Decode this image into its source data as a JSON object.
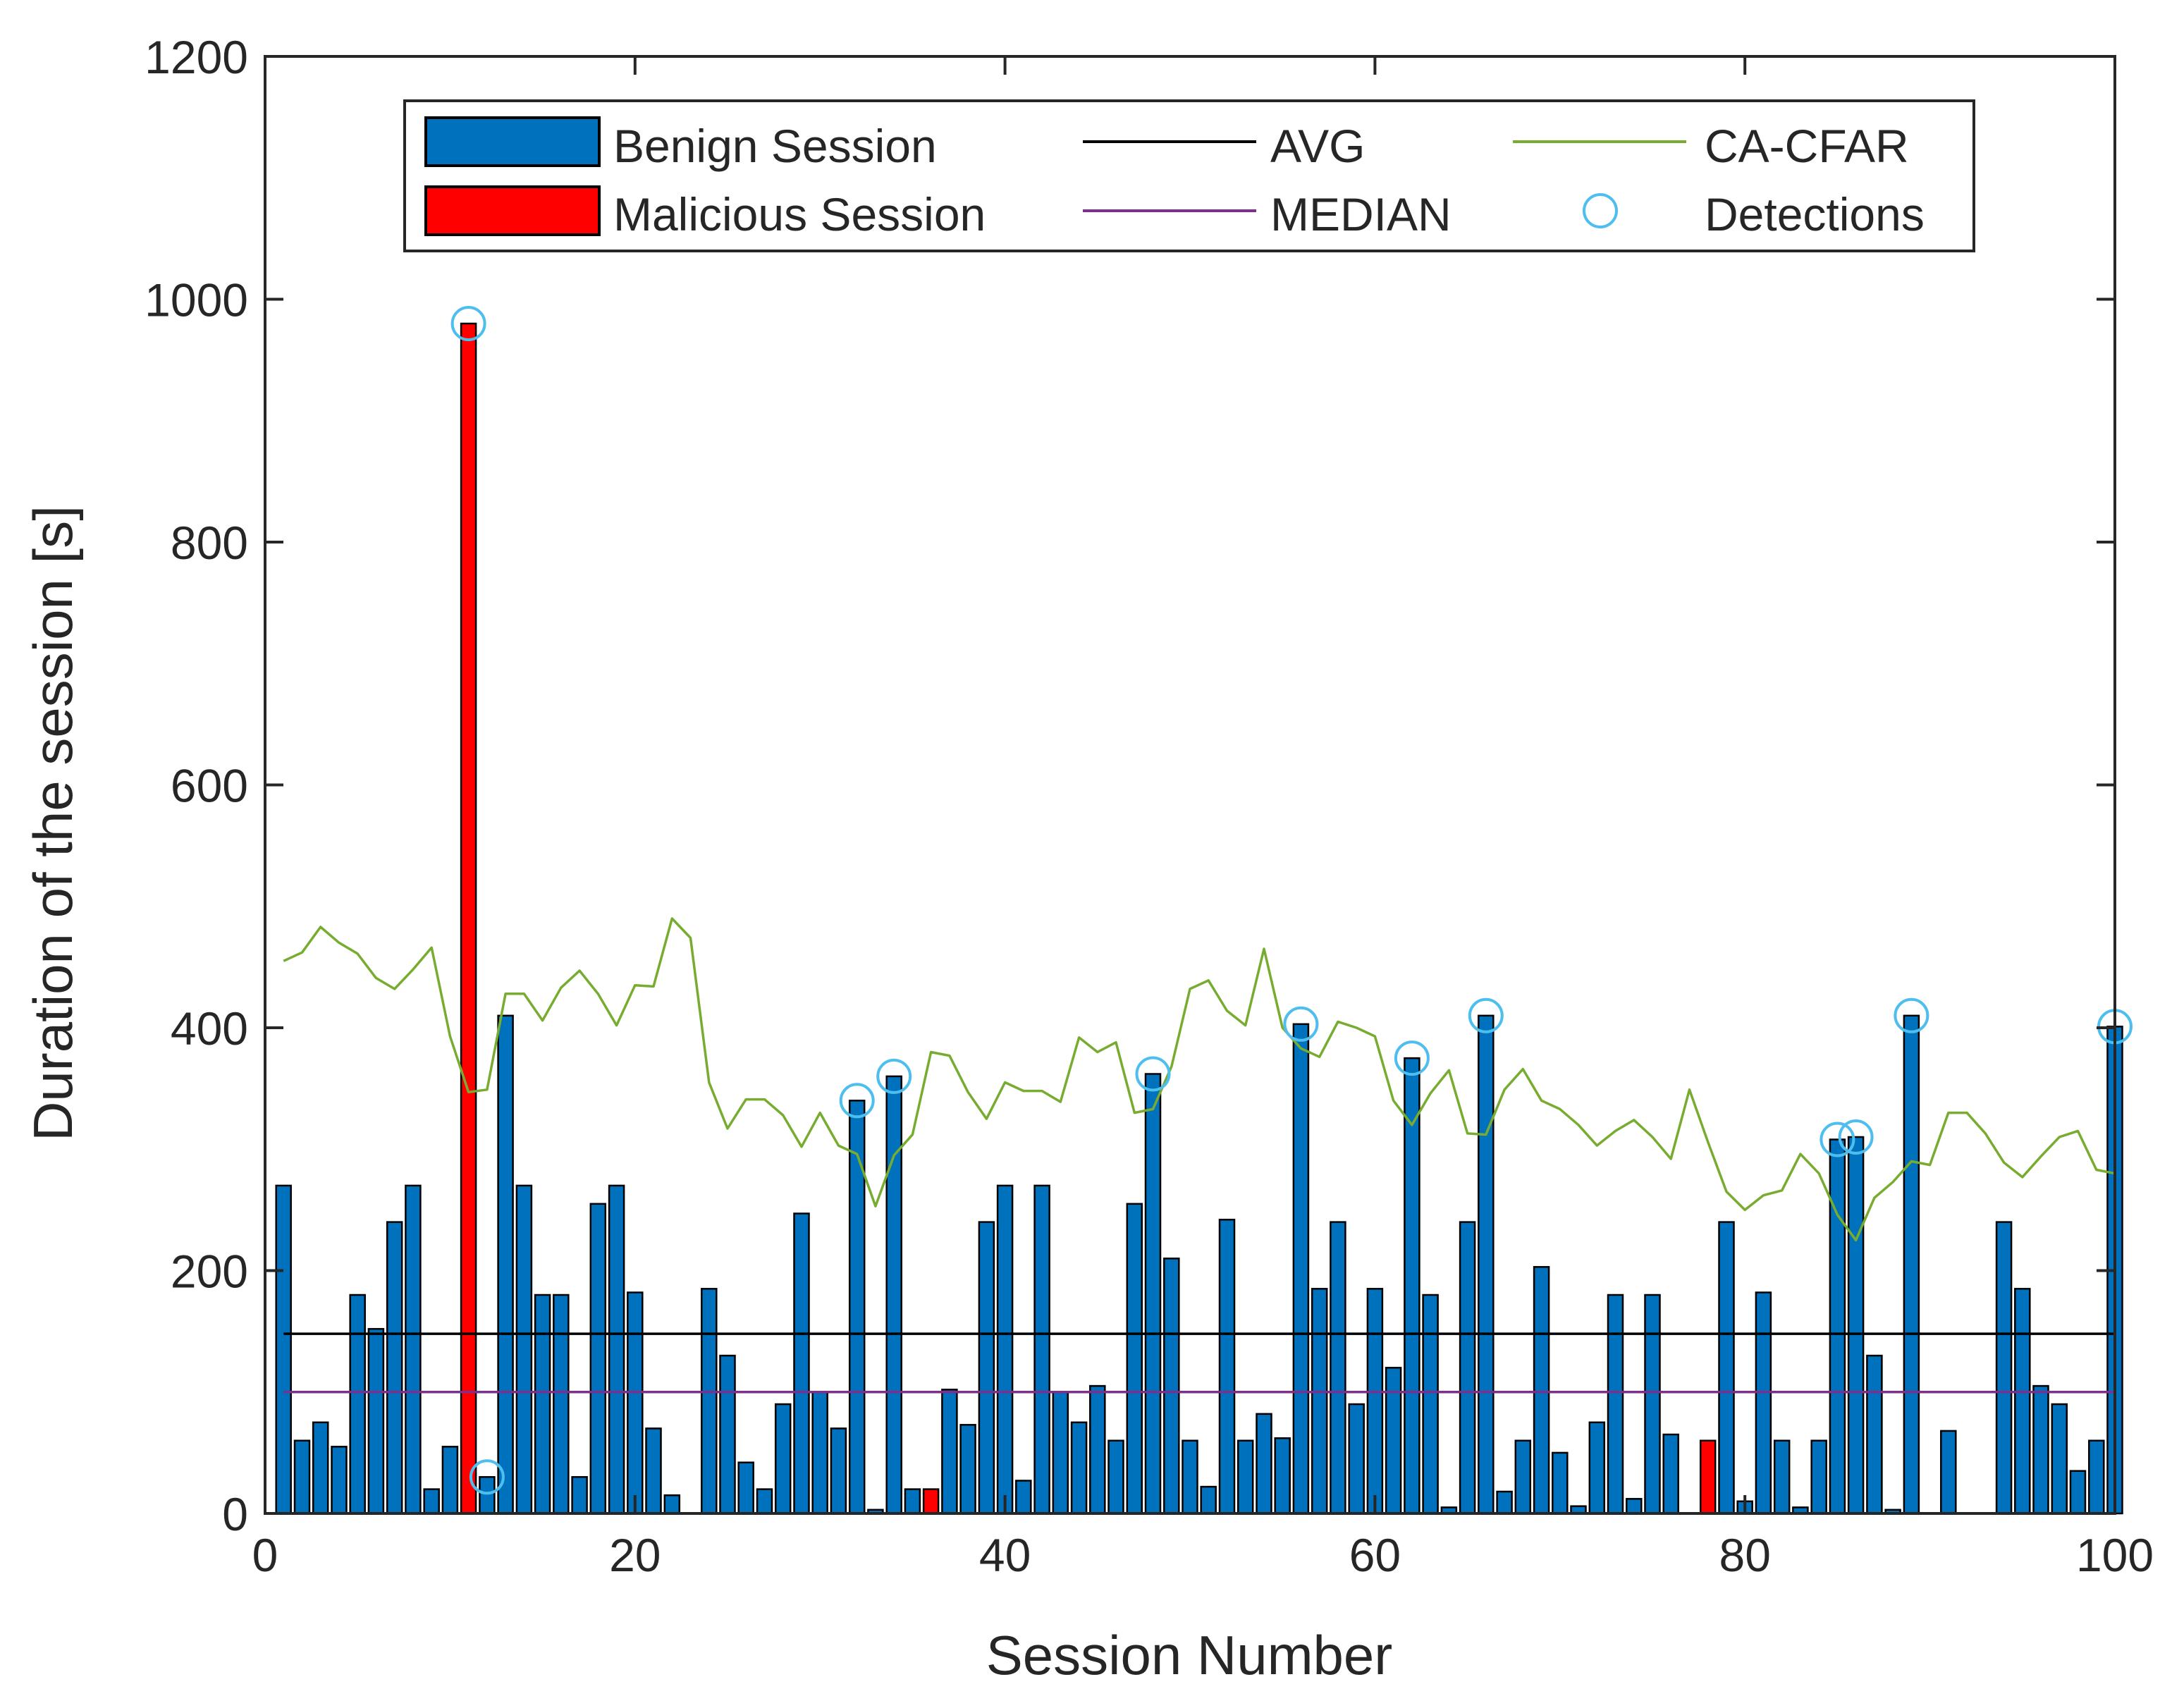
{
  "chart_data": {
    "type": "bar",
    "title": "",
    "xlabel": "Session Number",
    "ylabel": "Duration of the session [s]",
    "xlim": [
      0,
      100
    ],
    "ylim": [
      0,
      1200
    ],
    "xticks": [
      0,
      20,
      40,
      60,
      80,
      100
    ],
    "yticks": [
      0,
      200,
      400,
      600,
      800,
      1000,
      1200
    ],
    "grid": false,
    "legend_position": "top",
    "colors": {
      "benign": "#0072bd",
      "malicious": "#ff0000",
      "bar_edge": "#000000",
      "avg": "#000000",
      "median": "#7e2f8e",
      "cacfar": "#77ac30",
      "detections": "#4dbeee",
      "axis": "#262626"
    },
    "legend": {
      "benign": "Benign Session",
      "malicious": "Malicious Session",
      "avg": "AVG",
      "median": "MEDIAN",
      "cacfar": "CA-CFAR",
      "detections": "Detections"
    },
    "sessions": [
      1,
      2,
      3,
      4,
      5,
      6,
      7,
      8,
      9,
      10,
      11,
      12,
      13,
      14,
      15,
      16,
      17,
      18,
      19,
      20,
      21,
      22,
      23,
      24,
      25,
      26,
      27,
      28,
      29,
      30,
      31,
      32,
      33,
      34,
      35,
      36,
      37,
      38,
      39,
      40,
      41,
      42,
      43,
      44,
      45,
      46,
      47,
      48,
      49,
      50,
      51,
      52,
      53,
      54,
      55,
      56,
      57,
      58,
      59,
      60,
      61,
      62,
      63,
      64,
      65,
      66,
      67,
      68,
      69,
      70,
      71,
      72,
      73,
      74,
      75,
      76,
      77,
      78,
      79,
      80,
      81,
      82,
      83,
      84,
      85,
      86,
      87,
      88,
      89,
      90,
      91,
      92,
      93,
      94,
      95,
      96,
      97,
      98,
      99,
      100
    ],
    "durations": [
      270,
      60,
      75,
      55,
      180,
      152,
      240,
      270,
      20,
      55,
      980,
      30,
      410,
      270,
      180,
      180,
      30,
      255,
      270,
      182,
      70,
      15,
      0,
      185,
      130,
      42,
      20,
      90,
      247,
      100,
      70,
      340,
      3,
      360,
      20,
      20,
      102,
      73,
      240,
      270,
      27,
      270,
      100,
      75,
      105,
      60,
      255,
      362,
      210,
      60,
      22,
      242,
      60,
      82,
      62,
      403,
      185,
      240,
      90,
      185,
      120,
      375,
      180,
      5,
      240,
      410,
      18,
      60,
      203,
      50,
      6,
      75,
      180,
      12,
      180,
      65,
      0,
      60,
      240,
      10,
      182,
      60,
      5,
      60,
      308,
      310,
      130,
      3,
      410,
      0,
      68,
      0,
      0,
      240,
      185,
      105,
      90,
      35,
      60,
      401
    ],
    "malicious_sessions": [
      11,
      36,
      78
    ],
    "avg": 148,
    "median": 100,
    "cacfar": [
      455,
      462,
      483,
      470,
      461,
      441,
      432,
      448,
      466,
      393,
      347,
      349,
      428,
      428,
      406,
      433,
      447,
      428,
      402,
      435,
      434,
      490,
      474,
      355,
      317,
      341,
      341,
      328,
      302,
      330,
      303,
      296,
      253,
      295,
      312,
      380,
      377,
      347,
      325,
      355,
      348,
      348,
      339,
      392,
      380,
      388,
      330,
      333,
      368,
      432,
      439,
      414,
      402,
      465,
      400,
      383,
      376,
      405,
      400,
      393,
      340,
      320,
      346,
      365,
      313,
      312,
      349,
      366,
      340,
      333,
      320,
      303,
      315,
      324,
      310,
      292,
      349,
      306,
      265,
      250,
      262,
      266,
      296,
      280,
      246,
      225,
      260,
      273,
      290,
      287,
      330,
      330,
      313,
      289,
      277,
      294,
      310,
      315,
      283,
      280
    ],
    "detections": [
      11,
      12,
      32,
      34,
      48,
      56,
      62,
      66,
      85,
      86,
      89,
      100
    ]
  }
}
